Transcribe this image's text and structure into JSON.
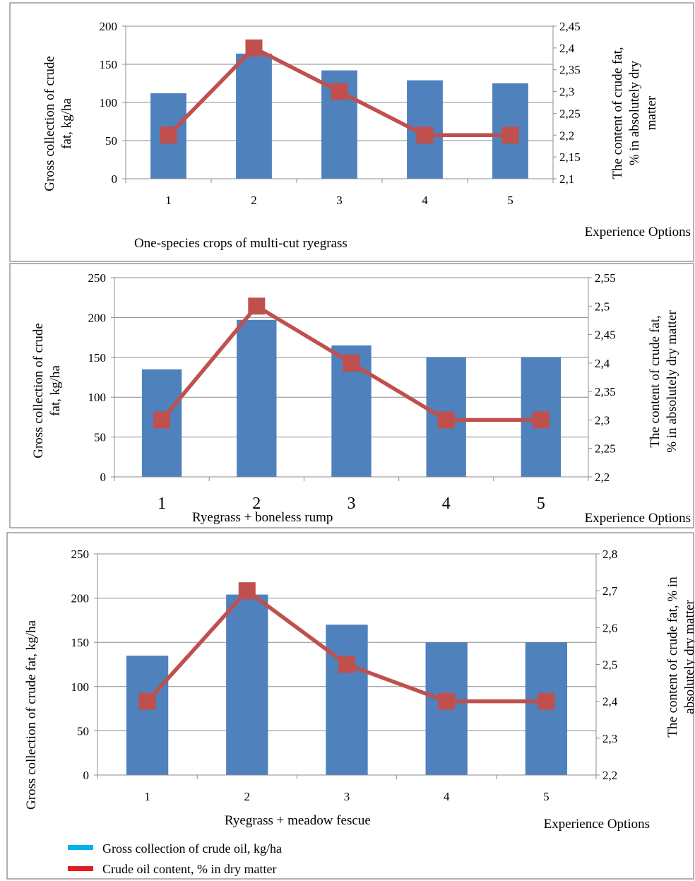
{
  "legend": {
    "bars_label": "Gross collection of crude oil, kg/ha",
    "line_label": "Crude oil content, % in dry matter",
    "bars_color": "#00b0f0",
    "line_color": "#e41c1c"
  },
  "chart_data": [
    {
      "type": "bar+line",
      "categories": [
        "1",
        "2",
        "3",
        "4",
        "5"
      ],
      "series": [
        {
          "values": [
            112,
            164,
            142,
            129,
            125
          ],
          "axis": "left",
          "kind": "bar",
          "color": "#4f81bd"
        },
        {
          "values": [
            2.2,
            2.4,
            2.3,
            2.2,
            2.2
          ],
          "axis": "right",
          "kind": "line",
          "color": "#c0504d"
        }
      ],
      "ylabel_left": [
        "Gross collection of crude",
        "fat, kg/ha"
      ],
      "ylabel_right": [
        "The content of crude fat,",
        "% in absolutely dry",
        "matter"
      ],
      "xlabel": "Experience Options",
      "caption": "One-species crops of multi-cut ryegrass",
      "ylim_left": [
        0,
        200
      ],
      "yticks_left": [
        "0",
        "50",
        "100",
        "150",
        "200"
      ],
      "ylim_right": [
        2.1,
        2.45
      ],
      "yticks_right": [
        "2,1",
        "2,15",
        "2,2",
        "2,25",
        "2,3",
        "2,35",
        "2,4",
        "2,45"
      ],
      "grid": true
    },
    {
      "type": "bar+line",
      "categories": [
        "1",
        "2",
        "3",
        "4",
        "5"
      ],
      "series": [
        {
          "values": [
            135,
            197,
            165,
            150,
            150
          ],
          "axis": "left",
          "kind": "bar",
          "color": "#4f81bd"
        },
        {
          "values": [
            2.3,
            2.5,
            2.4,
            2.3,
            2.3
          ],
          "axis": "right",
          "kind": "line",
          "color": "#c0504d"
        }
      ],
      "ylabel_left": [
        "Gross collection of crude",
        "fat, kg/ha"
      ],
      "ylabel_right": [
        "The content of crude fat,",
        "% in absolutely dry matter"
      ],
      "xlabel": "Experience Options",
      "caption": "Ryegrass + boneless rump",
      "ylim_left": [
        0,
        250
      ],
      "yticks_left": [
        "0",
        "50",
        "100",
        "150",
        "200",
        "250"
      ],
      "ylim_right": [
        2.2,
        2.55
      ],
      "yticks_right": [
        "2,2",
        "2,25",
        "2,3",
        "2,35",
        "2,4",
        "2,45",
        "2,5",
        "2,55"
      ],
      "grid": true
    },
    {
      "type": "bar+line",
      "categories": [
        "1",
        "2",
        "3",
        "4",
        "5"
      ],
      "series": [
        {
          "values": [
            135,
            204,
            170,
            150,
            150
          ],
          "axis": "left",
          "kind": "bar",
          "color": "#4f81bd"
        },
        {
          "values": [
            2.4,
            2.7,
            2.5,
            2.4,
            2.4
          ],
          "axis": "right",
          "kind": "line",
          "color": "#c0504d"
        }
      ],
      "ylabel_left": [
        "Gross collection of crude fat, kg/ha"
      ],
      "ylabel_right": [
        "The content of crude fat, % in",
        "absolutely dry matter"
      ],
      "xlabel": "Experience Options",
      "caption": "Ryegrass + meadow fescue",
      "ylim_left": [
        0,
        250
      ],
      "yticks_left": [
        "0",
        "50",
        "100",
        "150",
        "200",
        "250"
      ],
      "ylim_right": [
        2.2,
        2.8
      ],
      "yticks_right": [
        "2,2",
        "2,3",
        "2,4",
        "2,5",
        "2,6",
        "2,7",
        "2,8"
      ],
      "grid": true
    }
  ]
}
